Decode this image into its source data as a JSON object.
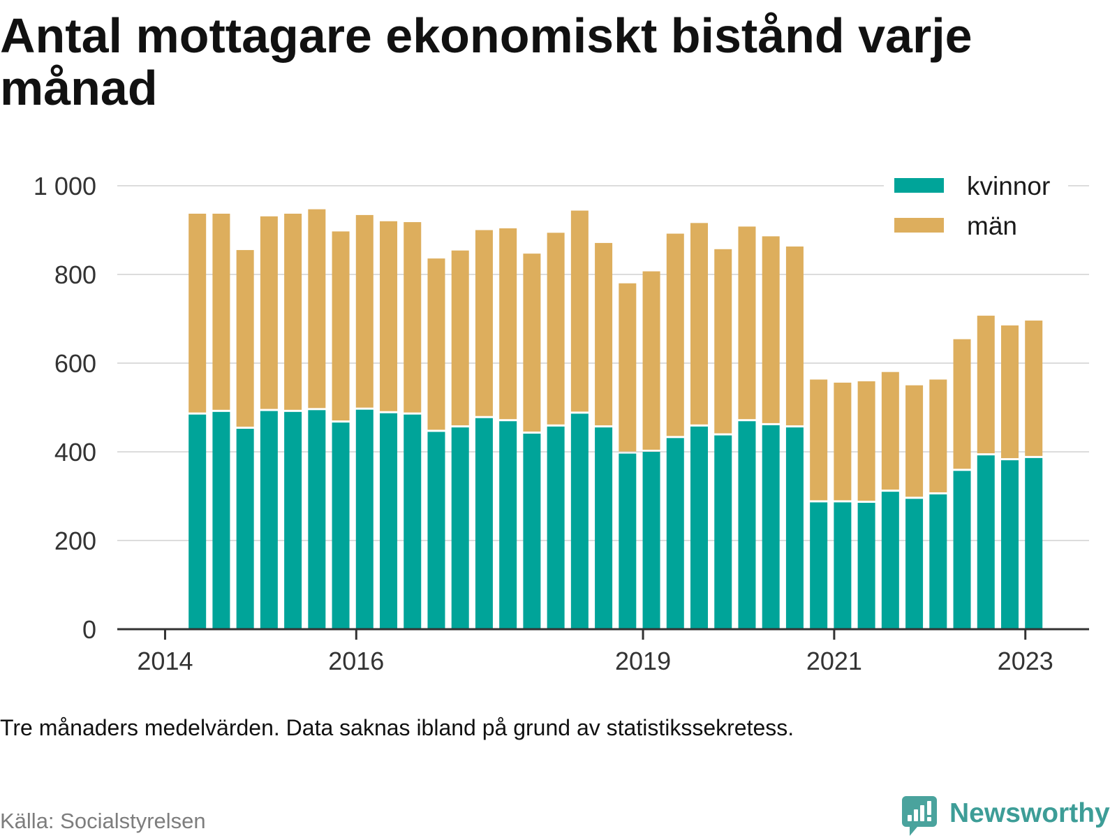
{
  "chart_data": {
    "type": "bar",
    "stacked": true,
    "title": "Antal mottagare ekonomiskt bistånd varje månad",
    "x": [
      "2014-04",
      "2014-07",
      "2014-10",
      "2015-01",
      "2015-04",
      "2015-07",
      "2015-10",
      "2016-01",
      "2016-04",
      "2016-07",
      "2016-10",
      "2017-01",
      "2017-04",
      "2017-07",
      "2017-10",
      "2018-01",
      "2018-04",
      "2018-07",
      "2018-10",
      "2019-01",
      "2019-04",
      "2019-07",
      "2019-10",
      "2020-01",
      "2020-04",
      "2020-07",
      "2020-10",
      "2021-01",
      "2021-04",
      "2021-07",
      "2021-10",
      "2022-01",
      "2022-04",
      "2022-07",
      "2022-10",
      "2023-01"
    ],
    "xlim": [
      "2013-07",
      "2023-09"
    ],
    "ylim": [
      0,
      1000
    ],
    "x_ticks": [
      "2014",
      "2016",
      "2019",
      "2021",
      "2023"
    ],
    "y_ticks": [
      "0",
      "200",
      "400",
      "600",
      "800",
      "1 000"
    ],
    "grid": "horizontal",
    "legend_position": "top-right",
    "series": [
      {
        "name": "kvinnor",
        "color": "#00a499",
        "values": [
          484,
          490,
          452,
          492,
          490,
          494,
          466,
          495,
          487,
          484,
          445,
          455,
          476,
          469,
          441,
          457,
          486,
          455,
          396,
          400,
          431,
          457,
          437,
          469,
          460,
          455,
          286,
          286,
          285,
          310,
          294,
          304,
          357,
          392,
          381,
          386
        ]
      },
      {
        "name": "män",
        "color": "#ddae5d",
        "values": [
          453,
          447,
          403,
          439,
          447,
          453,
          431,
          439,
          433,
          434,
          391,
          399,
          424,
          435,
          406,
          437,
          458,
          416,
          384,
          407,
          461,
          459,
          420,
          439,
          426,
          408,
          277,
          270,
          274,
          270,
          256,
          259,
          297,
          315,
          304,
          310
        ]
      }
    ]
  },
  "note": "Tre månaders medelvärden. Data saknas ibland på grund av statistikssekretess.",
  "source": "Källa: Socialstyrelsen",
  "logo": {
    "text": "Newsworthy",
    "icon": "newsworthy-logo-icon"
  }
}
